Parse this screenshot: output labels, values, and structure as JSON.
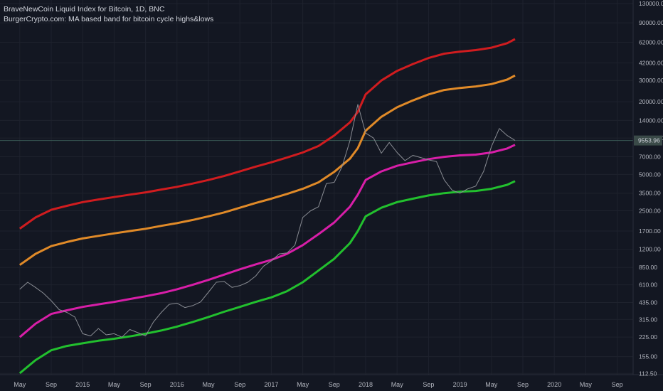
{
  "header": {
    "symbol_title": "BraveNewCoin Liquid Index for Bitcoin, 1D, BNC",
    "indicator_title": "BurgerCrypto.com: MA based band for bitcoin cycle highs&lows"
  },
  "price_label": {
    "value": "9553.96",
    "bg": "#3a4a48",
    "color": "#d1d4dc"
  },
  "colors": {
    "background": "#131722",
    "grid": "#1e222d",
    "axis_text": "#b2b5be",
    "price_line": "#8a8d94",
    "horizontal_line": "#3a5a55"
  },
  "chart_data": {
    "type": "line",
    "title": "",
    "xlabel": "",
    "ylabel": "",
    "y_scale": "log",
    "ylim": [
      100,
      130000
    ],
    "x_ticks": [
      "May",
      "Sep",
      "2015",
      "May",
      "Sep",
      "2016",
      "May",
      "Sep",
      "2017",
      "May",
      "Sep",
      "2018",
      "May",
      "Sep",
      "2019",
      "May",
      "Sep",
      "2020",
      "May",
      "Sep"
    ],
    "y_ticks": [
      "130000.00",
      "90000.00",
      "62000.00",
      "42000.00",
      "30000.00",
      "20000.00",
      "14000.00",
      "10000.00",
      "7000.00",
      "5000.00",
      "3500.00",
      "2500.00",
      "1700.00",
      "1200.00",
      "850.00",
      "610.00",
      "435.00",
      "315.00",
      "225.00",
      "155.00",
      "112.50"
    ],
    "y_tick_values": [
      130000,
      90000,
      62000,
      42000,
      30000,
      20000,
      14000,
      10000,
      7000,
      5000,
      3500,
      2500,
      1700,
      1200,
      850,
      610,
      435,
      315,
      225,
      155,
      112.5
    ],
    "horizontal_line": 9553.96,
    "series": [
      {
        "color": "#d01c1f",
        "x": [
          "2014-05",
          "2014-07",
          "2014-09",
          "2014-11",
          "2015-01",
          "2015-03",
          "2015-05",
          "2015-07",
          "2015-09",
          "2015-11",
          "2016-01",
          "2016-03",
          "2016-05",
          "2016-07",
          "2016-09",
          "2016-11",
          "2017-01",
          "2017-03",
          "2017-05",
          "2017-07",
          "2017-09",
          "2017-11",
          "2017-12",
          "2018-01",
          "2018-03",
          "2018-05",
          "2018-07",
          "2018-09",
          "2018-11",
          "2019-01",
          "2019-03",
          "2019-05",
          "2019-07",
          "2019-08"
        ],
        "values": [
          1780,
          2200,
          2550,
          2750,
          2950,
          3100,
          3250,
          3400,
          3550,
          3750,
          3950,
          4200,
          4500,
          4850,
          5300,
          5800,
          6300,
          6900,
          7600,
          8600,
          10500,
          13500,
          16500,
          23000,
          30000,
          36000,
          41000,
          46000,
          50000,
          52000,
          53500,
          56000,
          61000,
          66000
        ]
      },
      {
        "color": "#e08a28",
        "x": [
          "2014-05",
          "2014-07",
          "2014-09",
          "2014-11",
          "2015-01",
          "2015-03",
          "2015-05",
          "2015-07",
          "2015-09",
          "2015-11",
          "2016-01",
          "2016-03",
          "2016-05",
          "2016-07",
          "2016-09",
          "2016-11",
          "2017-01",
          "2017-03",
          "2017-05",
          "2017-07",
          "2017-09",
          "2017-11",
          "2017-12",
          "2018-01",
          "2018-03",
          "2018-05",
          "2018-07",
          "2018-09",
          "2018-11",
          "2019-01",
          "2019-03",
          "2019-05",
          "2019-07",
          "2019-08"
        ],
        "values": [
          890,
          1100,
          1275,
          1380,
          1475,
          1550,
          1625,
          1700,
          1775,
          1875,
          1975,
          2100,
          2250,
          2425,
          2650,
          2900,
          3150,
          3450,
          3800,
          4300,
          5250,
          6750,
          8250,
          11500,
          15000,
          18000,
          20500,
          23000,
          25000,
          26000,
          26750,
          28000,
          30500,
          33000
        ]
      },
      {
        "color": "#d81ea8",
        "x": [
          "2014-05",
          "2014-07",
          "2014-09",
          "2014-11",
          "2015-01",
          "2015-03",
          "2015-05",
          "2015-07",
          "2015-09",
          "2015-11",
          "2016-01",
          "2016-03",
          "2016-05",
          "2016-07",
          "2016-09",
          "2016-11",
          "2017-01",
          "2017-03",
          "2017-05",
          "2017-07",
          "2017-09",
          "2017-11",
          "2017-12",
          "2018-01",
          "2018-03",
          "2018-05",
          "2018-07",
          "2018-09",
          "2018-11",
          "2019-01",
          "2019-03",
          "2019-05",
          "2019-07",
          "2019-08"
        ],
        "values": [
          225,
          290,
          350,
          375,
          400,
          420,
          440,
          465,
          490,
          520,
          560,
          610,
          670,
          740,
          820,
          900,
          980,
          1100,
          1300,
          1600,
          2000,
          2700,
          3400,
          4500,
          5300,
          5900,
          6300,
          6700,
          7000,
          7200,
          7300,
          7600,
          8200,
          8800
        ]
      },
      {
        "color": "#22c02e",
        "x": [
          "2014-05",
          "2014-07",
          "2014-09",
          "2014-11",
          "2015-01",
          "2015-03",
          "2015-05",
          "2015-07",
          "2015-09",
          "2015-11",
          "2016-01",
          "2016-03",
          "2016-05",
          "2016-07",
          "2016-09",
          "2016-11",
          "2017-01",
          "2017-03",
          "2017-05",
          "2017-07",
          "2017-09",
          "2017-11",
          "2017-12",
          "2018-01",
          "2018-03",
          "2018-05",
          "2018-07",
          "2018-09",
          "2018-11",
          "2019-01",
          "2019-03",
          "2019-05",
          "2019-07",
          "2019-08"
        ],
        "values": [
          113,
          145,
          175,
          190,
          200,
          210,
          218,
          228,
          240,
          255,
          275,
          300,
          330,
          365,
          400,
          440,
          480,
          540,
          640,
          800,
          1000,
          1350,
          1700,
          2250,
          2650,
          2950,
          3150,
          3350,
          3500,
          3600,
          3650,
          3800,
          4100,
          4400
        ]
      },
      {
        "color": "#8a8d94",
        "x": [
          "2014-05",
          "2014-06",
          "2014-07",
          "2014-08",
          "2014-09",
          "2014-10",
          "2014-11",
          "2014-12",
          "2015-01",
          "2015-02",
          "2015-03",
          "2015-04",
          "2015-05",
          "2015-06",
          "2015-07",
          "2015-08",
          "2015-09",
          "2015-10",
          "2015-11",
          "2015-12",
          "2016-01",
          "2016-02",
          "2016-03",
          "2016-04",
          "2016-05",
          "2016-06",
          "2016-07",
          "2016-08",
          "2016-09",
          "2016-10",
          "2016-11",
          "2016-12",
          "2017-01",
          "2017-02",
          "2017-03",
          "2017-04",
          "2017-05",
          "2017-06",
          "2017-07",
          "2017-08",
          "2017-09",
          "2017-10",
          "2017-11",
          "2017-12",
          "2018-01",
          "2018-02",
          "2018-03",
          "2018-04",
          "2018-05",
          "2018-06",
          "2018-07",
          "2018-08",
          "2018-09",
          "2018-10",
          "2018-11",
          "2018-12",
          "2019-01",
          "2019-02",
          "2019-03",
          "2019-04",
          "2019-05",
          "2019-06",
          "2019-07",
          "2019-08"
        ],
        "values": [
          560,
          640,
          580,
          520,
          450,
          380,
          360,
          330,
          240,
          230,
          265,
          235,
          240,
          225,
          260,
          245,
          230,
          300,
          360,
          420,
          430,
          395,
          410,
          440,
          530,
          640,
          650,
          580,
          600,
          640,
          720,
          870,
          960,
          1100,
          1120,
          1300,
          2200,
          2500,
          2700,
          4200,
          4300,
          5800,
          9500,
          19000,
          11000,
          10000,
          7500,
          9200,
          7600,
          6500,
          7200,
          6900,
          6600,
          6400,
          4500,
          3700,
          3500,
          3800,
          4000,
          5300,
          8500,
          12000,
          10500,
          9550
        ]
      }
    ]
  }
}
